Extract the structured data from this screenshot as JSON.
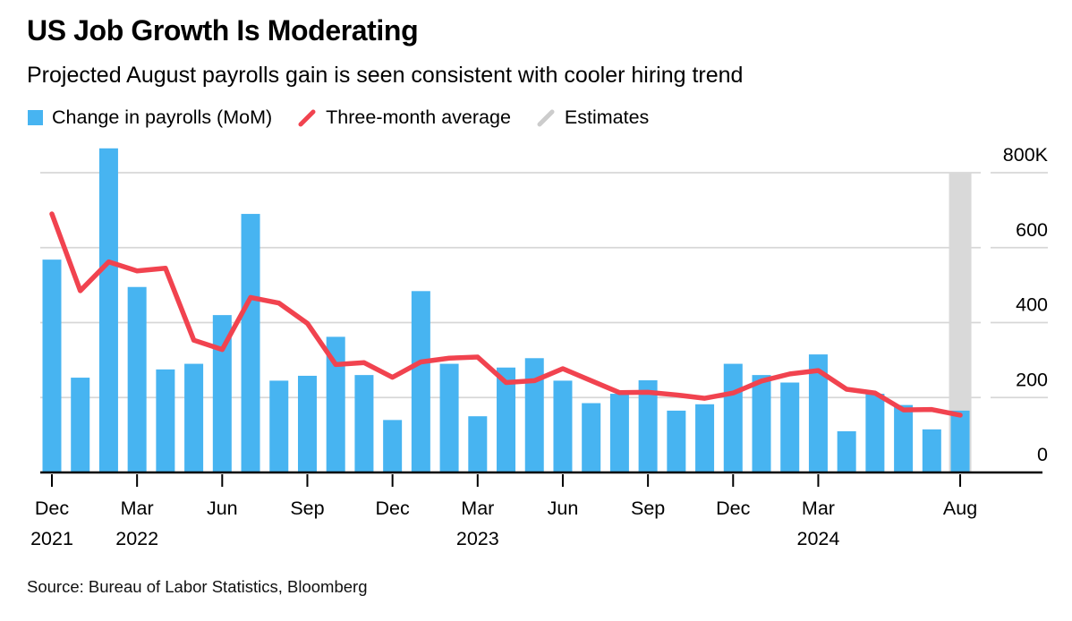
{
  "header": {
    "title": "US Job Growth Is Moderating",
    "subtitle": "Projected August payrolls gain is seen consistent with cooler hiring trend"
  },
  "legend": {
    "payrolls_label": "Change in payrolls (MoM)",
    "average_label": "Three-month average",
    "estimates_label": "Estimates"
  },
  "source": "Source: Bureau of Labor Statistics, Bloomberg",
  "colors": {
    "bar_blue": "#47b4f1",
    "line_red": "#f1434f",
    "estimate_band_gray": "#d9d9d9",
    "legend_estimate_swatch": "#cccccc",
    "gridline": "#d7d7d7",
    "axis": "#000000"
  },
  "chart_data": {
    "type": "bar",
    "title": "US Job Growth Is Moderating",
    "subtitle": "Projected August payrolls gain is seen consistent with cooler hiring trend",
    "unit": "thousands of jobs (K)",
    "grid": true,
    "legend_position": "top",
    "ylim": [
      0,
      800
    ],
    "ytick_values": [
      800,
      600,
      400,
      200,
      0
    ],
    "ytick_labels": [
      "800K",
      "600",
      "400",
      "200",
      "0"
    ],
    "categories": [
      "Dec 2021",
      "Jan 2022",
      "Feb 2022",
      "Mar 2022",
      "Apr 2022",
      "May 2022",
      "Jun 2022",
      "Jul 2022",
      "Aug 2022",
      "Sep 2022",
      "Oct 2022",
      "Nov 2022",
      "Dec 2022",
      "Jan 2023",
      "Feb 2023",
      "Mar 2023",
      "Apr 2023",
      "May 2023",
      "Jun 2023",
      "Jul 2023",
      "Aug 2023",
      "Sep 2023",
      "Oct 2023",
      "Nov 2023",
      "Dec 2023",
      "Jan 2024",
      "Feb 2024",
      "Mar 2024",
      "Apr 2024",
      "May 2024",
      "Jun 2024",
      "Jul 2024",
      "Aug 2024"
    ],
    "series": [
      {
        "name": "Change in payrolls (MoM)",
        "type": "bar",
        "color": "#47b4f1",
        "values": [
          568,
          253,
          865,
          495,
          275,
          290,
          420,
          690,
          245,
          258,
          362,
          260,
          140,
          484,
          290,
          150,
          280,
          305,
          245,
          185,
          210,
          246,
          165,
          182,
          290,
          260,
          240,
          315,
          110,
          210,
          180,
          115,
          165
        ]
      },
      {
        "name": "Three-month average",
        "type": "line",
        "color": "#f1434f",
        "values": [
          690,
          485,
          562,
          538,
          545,
          353,
          328,
          467,
          452,
          398,
          288,
          293,
          254,
          295,
          305,
          308,
          240,
          245,
          277,
          245,
          213,
          214,
          207,
          198,
          212,
          244,
          263,
          272,
          222,
          212,
          167,
          168,
          153
        ]
      }
    ],
    "estimate_band": {
      "category": "Aug 2024",
      "range": [
        0,
        800
      ],
      "color": "#d9d9d9"
    },
    "xticks": [
      {
        "index": 0,
        "month": "Dec",
        "year": "2021"
      },
      {
        "index": 3,
        "month": "Mar",
        "year": "2022"
      },
      {
        "index": 6,
        "month": "Jun"
      },
      {
        "index": 9,
        "month": "Sep"
      },
      {
        "index": 12,
        "month": "Dec"
      },
      {
        "index": 15,
        "month": "Mar",
        "year": "2023"
      },
      {
        "index": 18,
        "month": "Jun"
      },
      {
        "index": 21,
        "month": "Sep"
      },
      {
        "index": 24,
        "month": "Dec"
      },
      {
        "index": 27,
        "month": "Mar",
        "year": "2024"
      },
      {
        "index": 32,
        "month": "Aug"
      }
    ]
  }
}
